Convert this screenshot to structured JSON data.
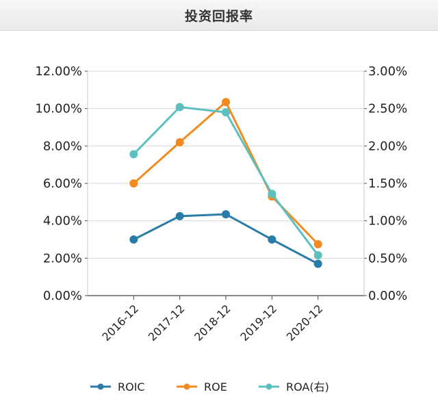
{
  "header": {
    "title": "投资回报率"
  },
  "chart_data": {
    "type": "line",
    "categories": [
      "2016-12",
      "2017-12",
      "2018-12",
      "2019-12",
      "2020-12"
    ],
    "left_axis": {
      "ticks": [
        "0.00%",
        "2.00%",
        "4.00%",
        "6.00%",
        "8.00%",
        "10.00%",
        "12.00%"
      ],
      "ylim": [
        0,
        12
      ]
    },
    "right_axis": {
      "ticks": [
        "0.00%",
        "0.50%",
        "1.00%",
        "1.50%",
        "2.00%",
        "2.50%",
        "3.00%"
      ],
      "ylim": [
        0,
        3
      ]
    },
    "grid": true,
    "legend_position": "bottom",
    "series": [
      {
        "name": "ROIC",
        "axis": "left",
        "color": "#2a7ca8",
        "values": [
          3.0,
          4.25,
          4.35,
          3.0,
          1.7
        ]
      },
      {
        "name": "ROE",
        "axis": "left",
        "color": "#f28a1f",
        "values": [
          6.0,
          8.2,
          10.35,
          5.3,
          2.75
        ]
      },
      {
        "name": "ROA(右)",
        "axis": "right",
        "color": "#5cc0c0",
        "values": [
          1.89,
          2.52,
          2.45,
          1.36,
          0.54
        ]
      }
    ]
  }
}
